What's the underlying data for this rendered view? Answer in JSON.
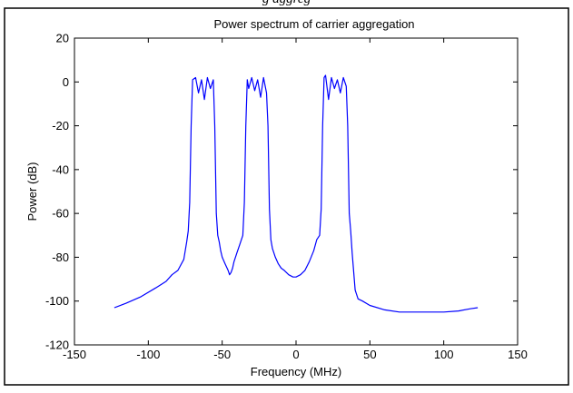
{
  "caption_fragment": "g                                                           aggreg",
  "chart_data": {
    "type": "line",
    "title": "Power spectrum of carrier aggregation",
    "xlabel": "Frequency (MHz)",
    "ylabel": "Power (dB)",
    "xlim": [
      -150,
      150
    ],
    "ylim": [
      -120,
      20
    ],
    "xticks": [
      -150,
      -100,
      -50,
      0,
      50,
      100,
      150
    ],
    "yticks": [
      20,
      0,
      -20,
      -40,
      -60,
      -80,
      -100,
      -120
    ],
    "grid": false,
    "legend": "none",
    "line_color": "#0000ff",
    "series": [
      {
        "x": [
          -123,
          -115,
          -105,
          -95,
          -88,
          -84,
          -80,
          -76,
          -74,
          -73,
          -72,
          -71,
          -70,
          -68,
          -66,
          -64,
          -62,
          -60,
          -58,
          -56,
          -55,
          -54,
          -53,
          -52,
          -51,
          -50,
          -48,
          -46,
          -45,
          -44,
          -43,
          -42,
          -40,
          -38,
          -36,
          -35,
          -34,
          -33,
          -32,
          -30,
          -28,
          -26,
          -24,
          -22,
          -20,
          -19,
          -18,
          -17,
          -16,
          -14,
          -12,
          -10,
          -8,
          -5,
          -2,
          0,
          3,
          6,
          9,
          12,
          14,
          16,
          17,
          18,
          19,
          20,
          22,
          24,
          26,
          28,
          30,
          32,
          34,
          35,
          36,
          37,
          38,
          40,
          42,
          45,
          50,
          60,
          70,
          80,
          90,
          100,
          110,
          118,
          123
        ],
        "y": [
          -103,
          -101,
          -98,
          -94,
          -91,
          -88,
          -86,
          -81,
          -73,
          -68,
          -55,
          -20,
          1,
          2,
          -5,
          1,
          -8,
          2,
          -3,
          1,
          -20,
          -60,
          -70,
          -73,
          -77,
          -80,
          -83,
          -86,
          -88,
          -87,
          -85,
          -82,
          -78,
          -74,
          -70,
          -55,
          -20,
          1,
          -3,
          2,
          -4,
          1,
          -7,
          2,
          -5,
          -20,
          -58,
          -72,
          -76,
          -80,
          -83,
          -85,
          -86,
          -88,
          -89,
          -89,
          -88,
          -86,
          -82,
          -77,
          -72,
          -70,
          -58,
          -20,
          2,
          3,
          -8,
          2,
          -3,
          1,
          -5,
          2,
          -2,
          -20,
          -60,
          -68,
          -78,
          -95,
          -99,
          -100,
          -102,
          -104,
          -105,
          -105,
          -105,
          -105,
          -104.5,
          -103.5,
          -103
        ]
      }
    ]
  }
}
